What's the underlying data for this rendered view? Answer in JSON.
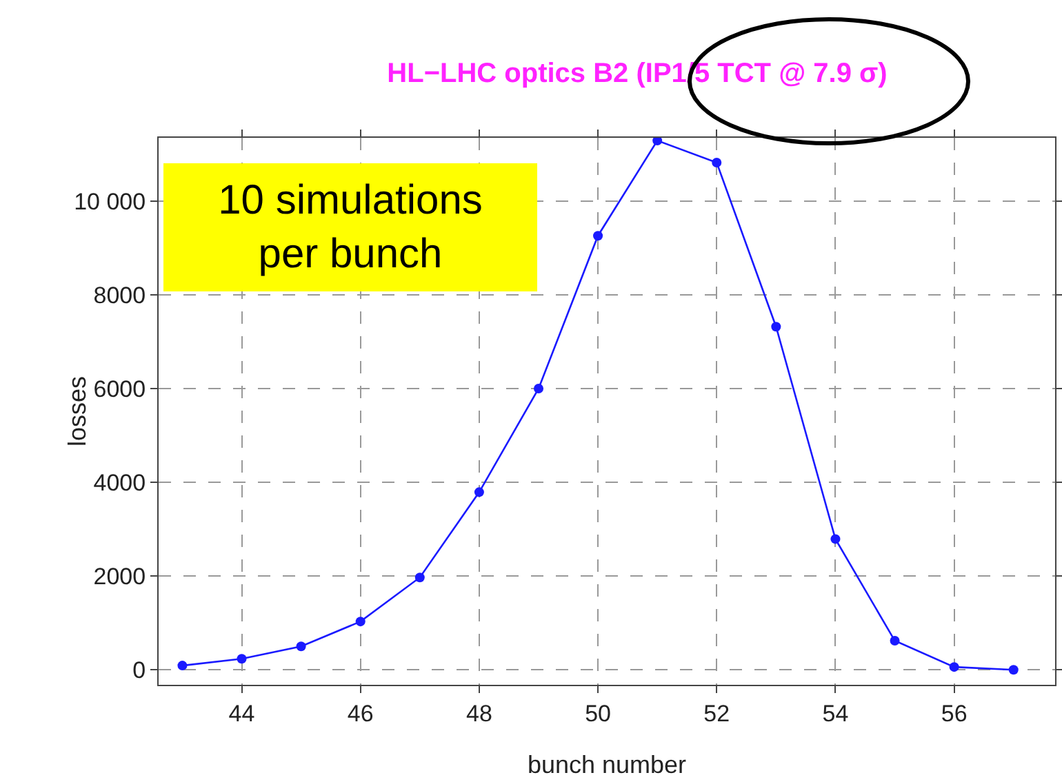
{
  "chart_data": {
    "type": "line",
    "title": "HL−LHC optics B2 (IP1/5 TCT @ 7.9 σ)",
    "xlabel": "bunch number",
    "ylabel": "losses",
    "x": [
      43,
      44,
      45,
      46,
      47,
      48,
      49,
      50,
      51,
      52,
      53,
      54,
      55,
      56,
      57
    ],
    "series": [
      {
        "color": "#1a1aff",
        "values": [
          90,
          235,
          500,
          1030,
          1970,
          3790,
          6000,
          9260,
          11290,
          10820,
          7320,
          2790,
          620,
          60,
          0
        ]
      }
    ],
    "xlim": [
      42.6,
      57.7
    ],
    "xticks": [
      44,
      46,
      48,
      50,
      52,
      54,
      56
    ],
    "ylim": [
      -320,
      11350
    ],
    "yticks": [
      0,
      2000,
      4000,
      6000,
      8000,
      {
        "value": 10000,
        "label": "10 000"
      }
    ],
    "grid": true,
    "marker": "circle",
    "line_style": "solid",
    "legend": false,
    "annotations": [
      "10 simulations\nper bunch"
    ]
  }
}
